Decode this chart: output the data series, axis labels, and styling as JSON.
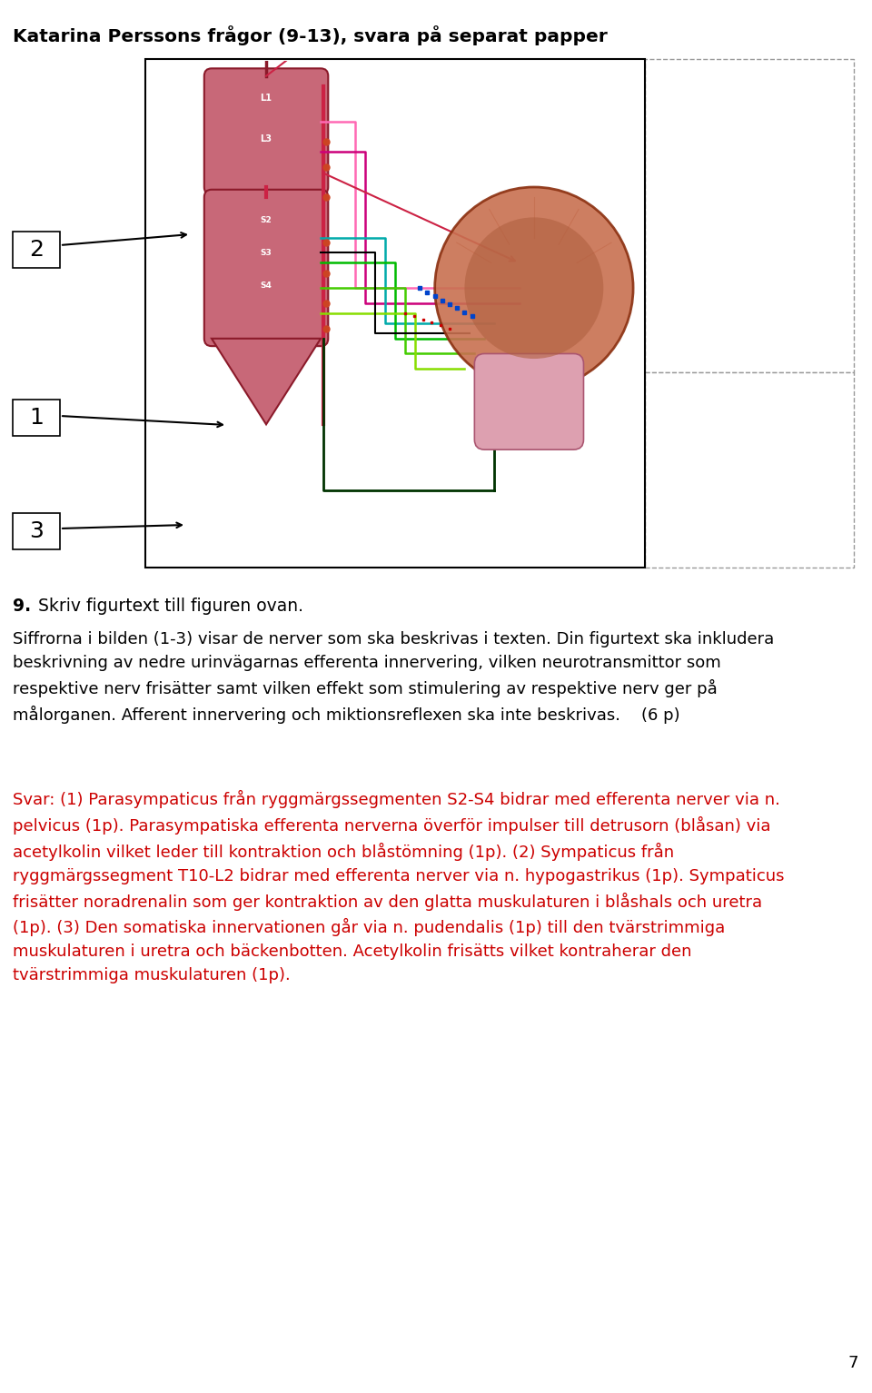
{
  "title": "Katarina Perssons frågor (9-13), svara på separat papper",
  "title_fontsize": 14.5,
  "bg_color": "#ffffff",
  "question_bold": "9.",
  "question_rest": " Skriv figurtext till figuren ovan.",
  "question_fontsize": 13.5,
  "body_text": "Siffrorna i bilden (1-3) visar de nerver som ska beskrivas i texten. Din figurtext ska inkludera\nbeskrivning av nedre urinvägarnas efferenta innervering, vilken neurotransmittor som\nrespektive nerv frisätter samt vilken effekt som stimulering av respektive nerv ger på\nmålorganen. Afferent innervering och miktionsreflexen ska inte beskrivas.    (6 p)",
  "body_fontsize": 13.0,
  "answer_text": "Svar: (1) Parasympaticus från ryggmärgssegmenten S2-S4 bidrar med efferenta nerver via n.\npelvicus (1p). Parasympatiska efferenta nerverna överför impulser till detrusorn (blåsan) via\nacetylkolin vilket leder till kontraktion och blåstömning (1p). (2) Sympaticus från\nryggmärgssegment T10-L2 bidrar med efferenta nerver via n. hypogastrikus (1p). Sympaticus\nfrisätter noradrenalin som ger kontraktion av den glatta muskulaturen i blåshals och uretra\n(1p). (3) Den somatiska innervationen går via n. pudendalis (1p) till den tvärstrimmiga\nmuskulaturen i uretra och bäckenbotten. Acetylkolin frisätts vilket kontraherar den\ntvärstrimmiga muskulaturen (1p).",
  "answer_fontsize": 13.0,
  "answer_color": "#cc0000",
  "page_num": "7"
}
